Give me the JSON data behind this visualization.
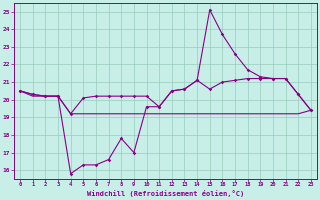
{
  "xlabel": "Windchill (Refroidissement éolien,°C)",
  "bg_color": "#c8eee8",
  "grid_color": "#99ccbb",
  "line_color": "#880088",
  "x": [
    0,
    1,
    2,
    3,
    4,
    5,
    6,
    7,
    8,
    9,
    10,
    11,
    12,
    13,
    14,
    15,
    16,
    17,
    18,
    19,
    20,
    21,
    22,
    23
  ],
  "y_windchill": [
    20.5,
    20.3,
    20.2,
    20.2,
    15.8,
    16.3,
    16.3,
    16.6,
    17.8,
    17.0,
    19.6,
    19.6,
    20.5,
    20.6,
    21.1,
    25.1,
    23.7,
    22.6,
    21.7,
    21.3,
    21.2,
    21.2,
    20.3,
    19.4
  ],
  "y_main": [
    20.5,
    20.3,
    20.2,
    20.2,
    19.2,
    20.1,
    20.2,
    20.2,
    20.2,
    20.2,
    20.2,
    19.6,
    20.5,
    20.6,
    21.1,
    20.6,
    21.0,
    21.1,
    21.2,
    21.2,
    21.2,
    21.2,
    20.3,
    19.4
  ],
  "y_flat": [
    20.5,
    20.2,
    20.2,
    20.2,
    19.2,
    19.2,
    19.2,
    19.2,
    19.2,
    19.2,
    19.2,
    19.2,
    19.2,
    19.2,
    19.2,
    19.2,
    19.2,
    19.2,
    19.2,
    19.2,
    19.2,
    19.2,
    19.2,
    19.4
  ],
  "ylim": [
    15.5,
    25.5
  ],
  "yticks": [
    16,
    17,
    18,
    19,
    20,
    21,
    22,
    23,
    24,
    25
  ],
  "xticks": [
    0,
    1,
    2,
    3,
    4,
    5,
    6,
    7,
    8,
    9,
    10,
    11,
    12,
    13,
    14,
    15,
    16,
    17,
    18,
    19,
    20,
    21,
    22,
    23
  ]
}
